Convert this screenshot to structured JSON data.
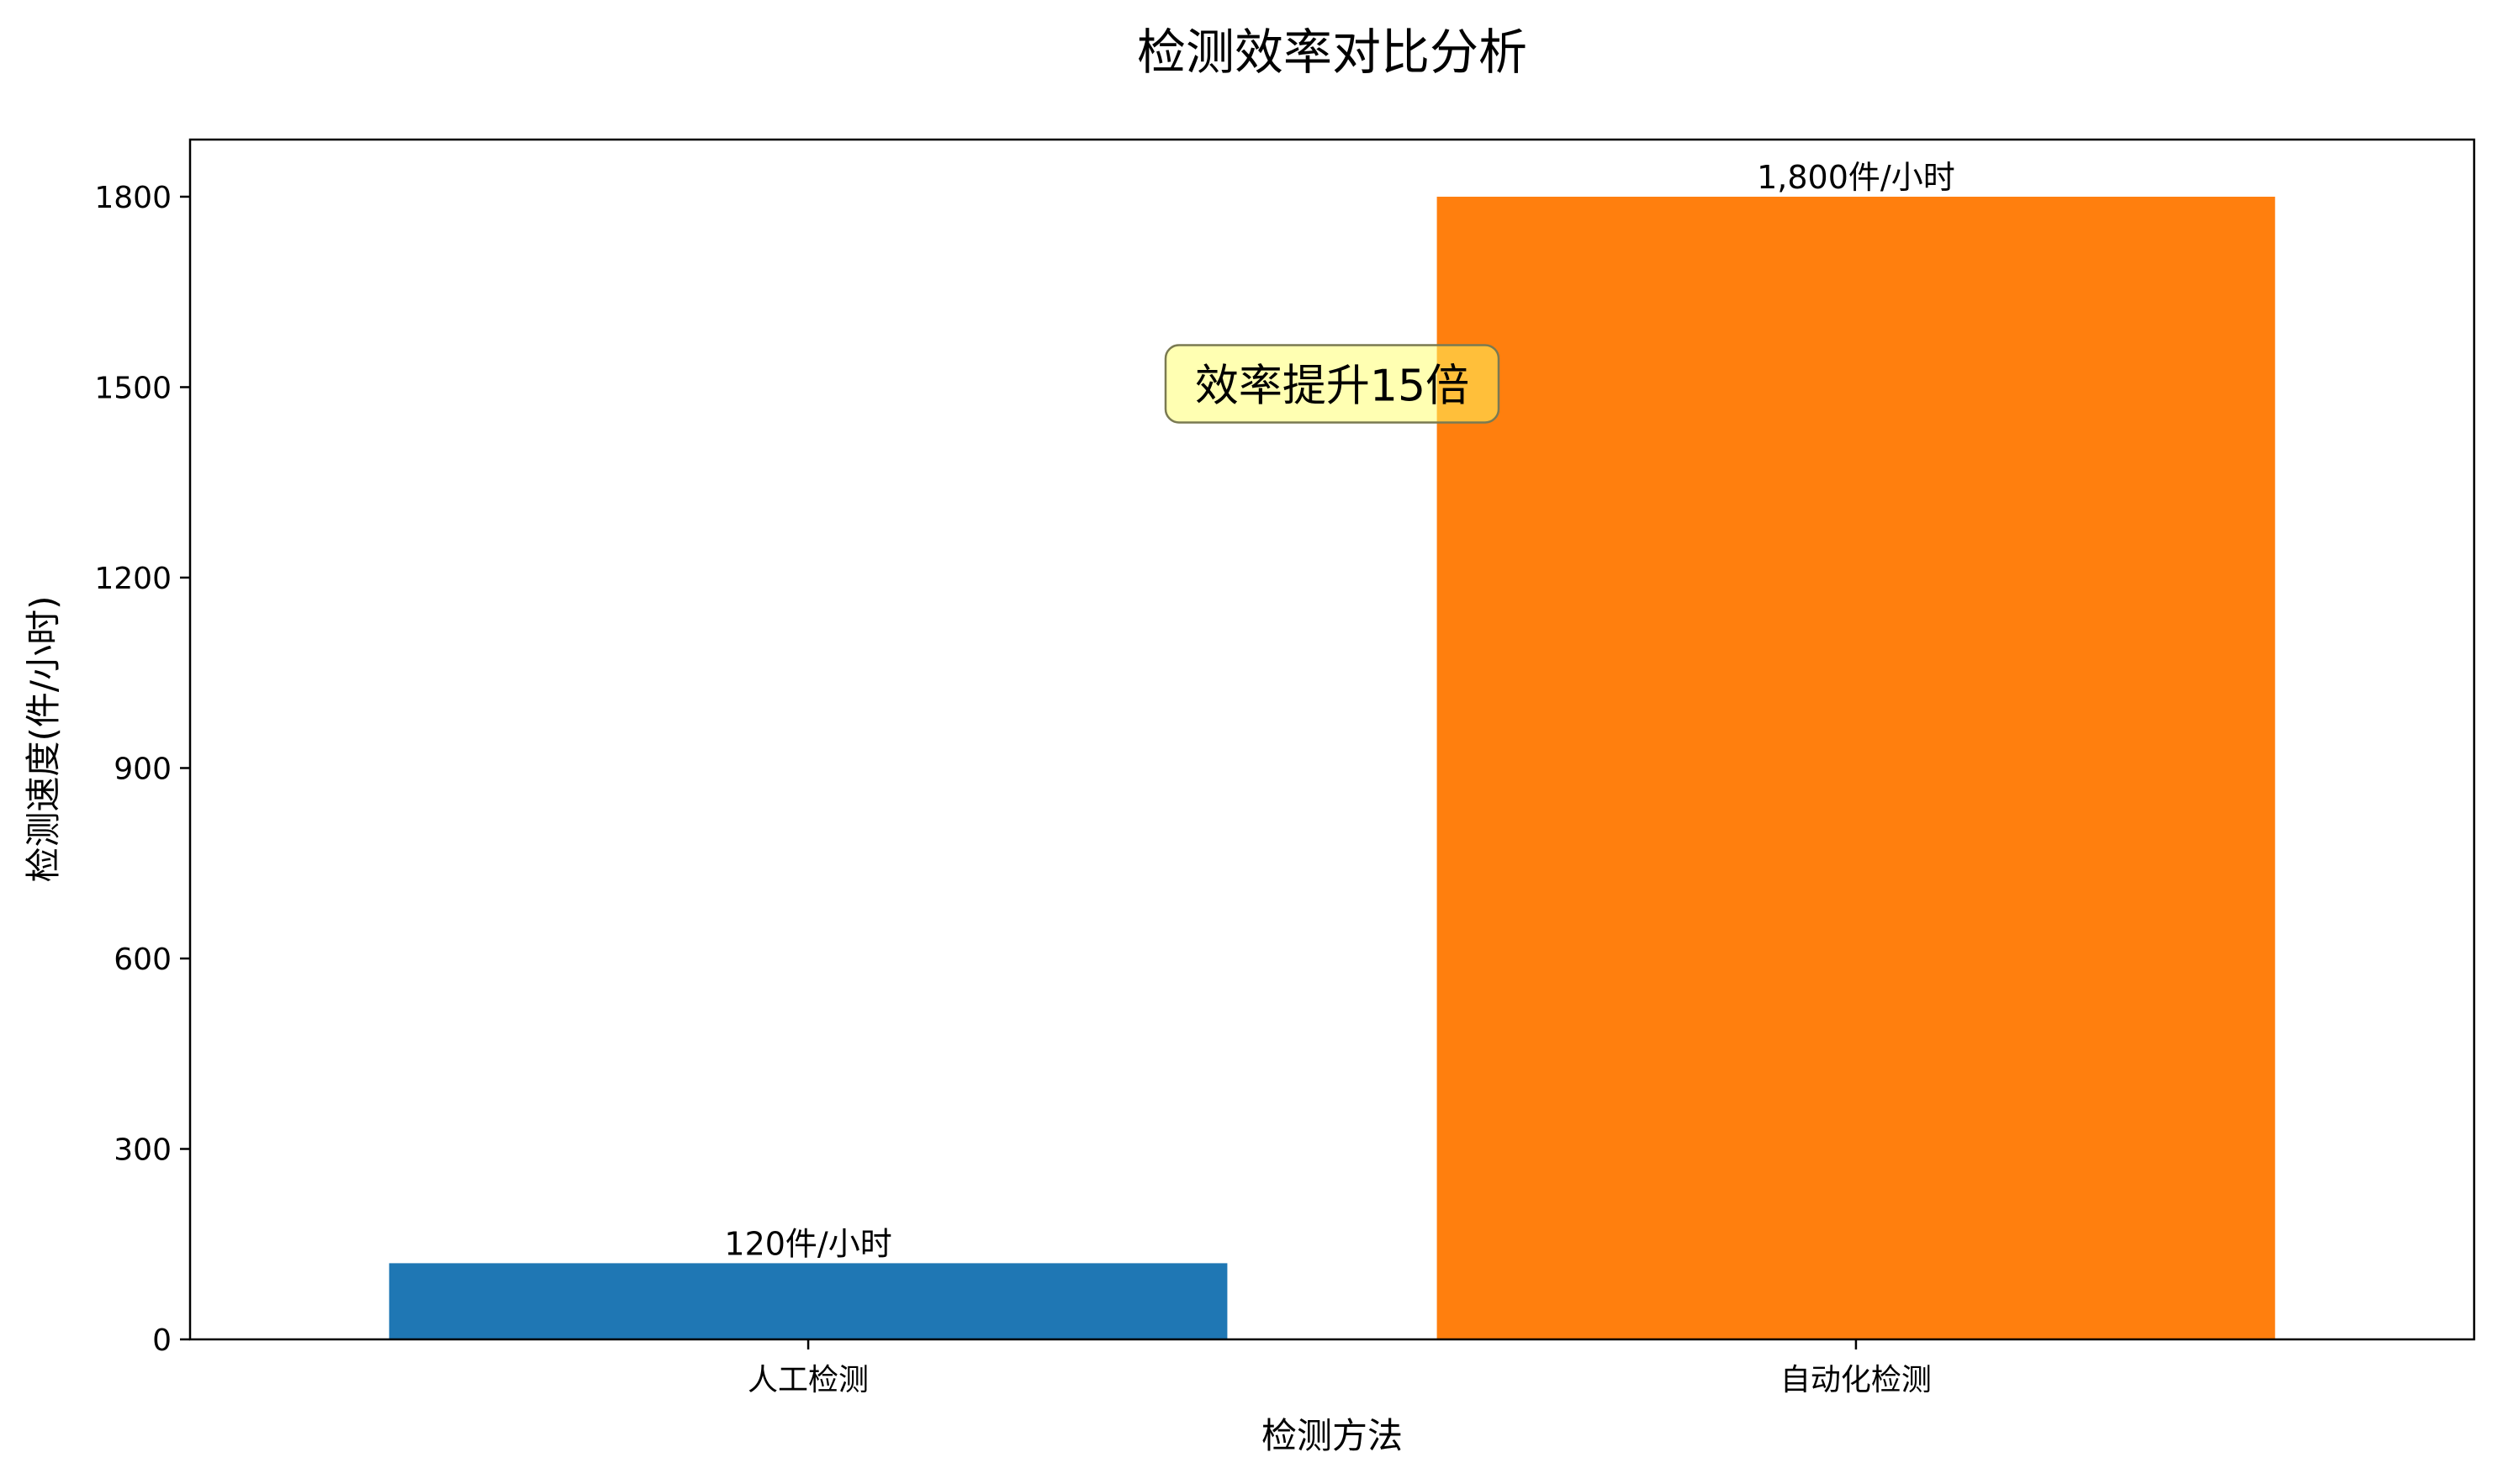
{
  "chart_data": {
    "type": "bar",
    "title": "检测效率对比分析",
    "xlabel": "检测方法",
    "ylabel": "检测速度(件/小时)",
    "categories": [
      "人工检测",
      "自动化检测"
    ],
    "values": [
      120,
      1800
    ],
    "data_labels": [
      "120件/小时",
      "1,800件/小时"
    ],
    "colors": [
      "#1f77b4",
      "#ff7f0e"
    ],
    "ylim": [
      0,
      1890
    ],
    "yticks": [
      0,
      300,
      600,
      900,
      1200,
      1500,
      1800
    ],
    "grid": false,
    "annotation": {
      "text": "效率提升15倍",
      "x_category": 0.5,
      "y": 1500,
      "box_fill": "#ffff66",
      "box_edge": "#7a7a52"
    }
  }
}
